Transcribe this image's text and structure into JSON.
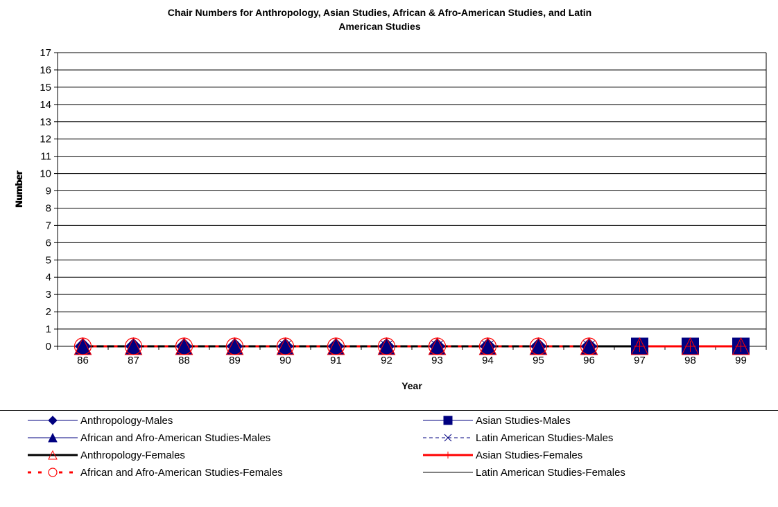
{
  "chart_data": {
    "type": "line",
    "title_lines": [
      "Chair Numbers for Anthropology, Asian Studies, African & Afro-American Studies, and Latin",
      "American Studies"
    ],
    "xlabel": "Year",
    "ylabel": "Number",
    "categories": [
      "86",
      "87",
      "88",
      "89",
      "90",
      "91",
      "92",
      "93",
      "94",
      "95",
      "96",
      "97",
      "98",
      "99"
    ],
    "ylim": [
      0,
      17
    ],
    "yticks": [
      0,
      1,
      2,
      3,
      4,
      5,
      6,
      7,
      8,
      9,
      10,
      11,
      12,
      13,
      14,
      15,
      16,
      17
    ],
    "grid": true,
    "legend_position": "bottom",
    "series": [
      {
        "name": "Anthropology-Males",
        "values": [
          0,
          0,
          0,
          0,
          0,
          0,
          0,
          0,
          0,
          0,
          0,
          null,
          null,
          null
        ],
        "color": "#000080",
        "marker": "diamond",
        "line": "solid"
      },
      {
        "name": "Asian Studies-Males",
        "values": [
          null,
          null,
          null,
          null,
          null,
          null,
          null,
          null,
          null,
          null,
          null,
          0,
          0,
          0
        ],
        "color": "#000080",
        "marker": "square",
        "line": "solid"
      },
      {
        "name": "African and Afro-American Studies-Males",
        "values": [
          0,
          0,
          0,
          0,
          0,
          0,
          0,
          0,
          0,
          0,
          0,
          null,
          null,
          null
        ],
        "color": "#000080",
        "marker": "triangle",
        "line": "solid"
      },
      {
        "name": "Latin American Studies-Males",
        "values": [
          null,
          null,
          null,
          null,
          0,
          null,
          0,
          0,
          0,
          null,
          0,
          null,
          null,
          null
        ],
        "color": "#000080",
        "marker": "x",
        "line": "dashed"
      },
      {
        "name": "Anthropology-Females",
        "values": [
          0,
          0,
          0,
          0,
          0,
          0,
          0,
          0,
          0,
          0,
          0,
          0,
          0,
          0
        ],
        "color": "#ff0000",
        "marker": "triangle-open",
        "line": "solid-black"
      },
      {
        "name": "Asian Studies-Females",
        "values": [
          null,
          null,
          null,
          null,
          null,
          null,
          null,
          null,
          null,
          null,
          null,
          0,
          0,
          0
        ],
        "color": "#ff0000",
        "marker": "plus",
        "line": "solid-thick"
      },
      {
        "name": "African and Afro-American Studies-Females",
        "values": [
          0,
          0,
          0,
          0,
          0,
          0,
          0,
          0,
          0,
          0,
          0,
          null,
          null,
          null
        ],
        "color": "#ff0000",
        "marker": "circle-open",
        "line": "dashed-thick"
      },
      {
        "name": "Latin American Studies-Females",
        "values": [
          null,
          null,
          null,
          null,
          null,
          null,
          null,
          null,
          null,
          null,
          null,
          null,
          null,
          null
        ],
        "color": "#000000",
        "marker": "none",
        "line": "solid"
      }
    ]
  }
}
